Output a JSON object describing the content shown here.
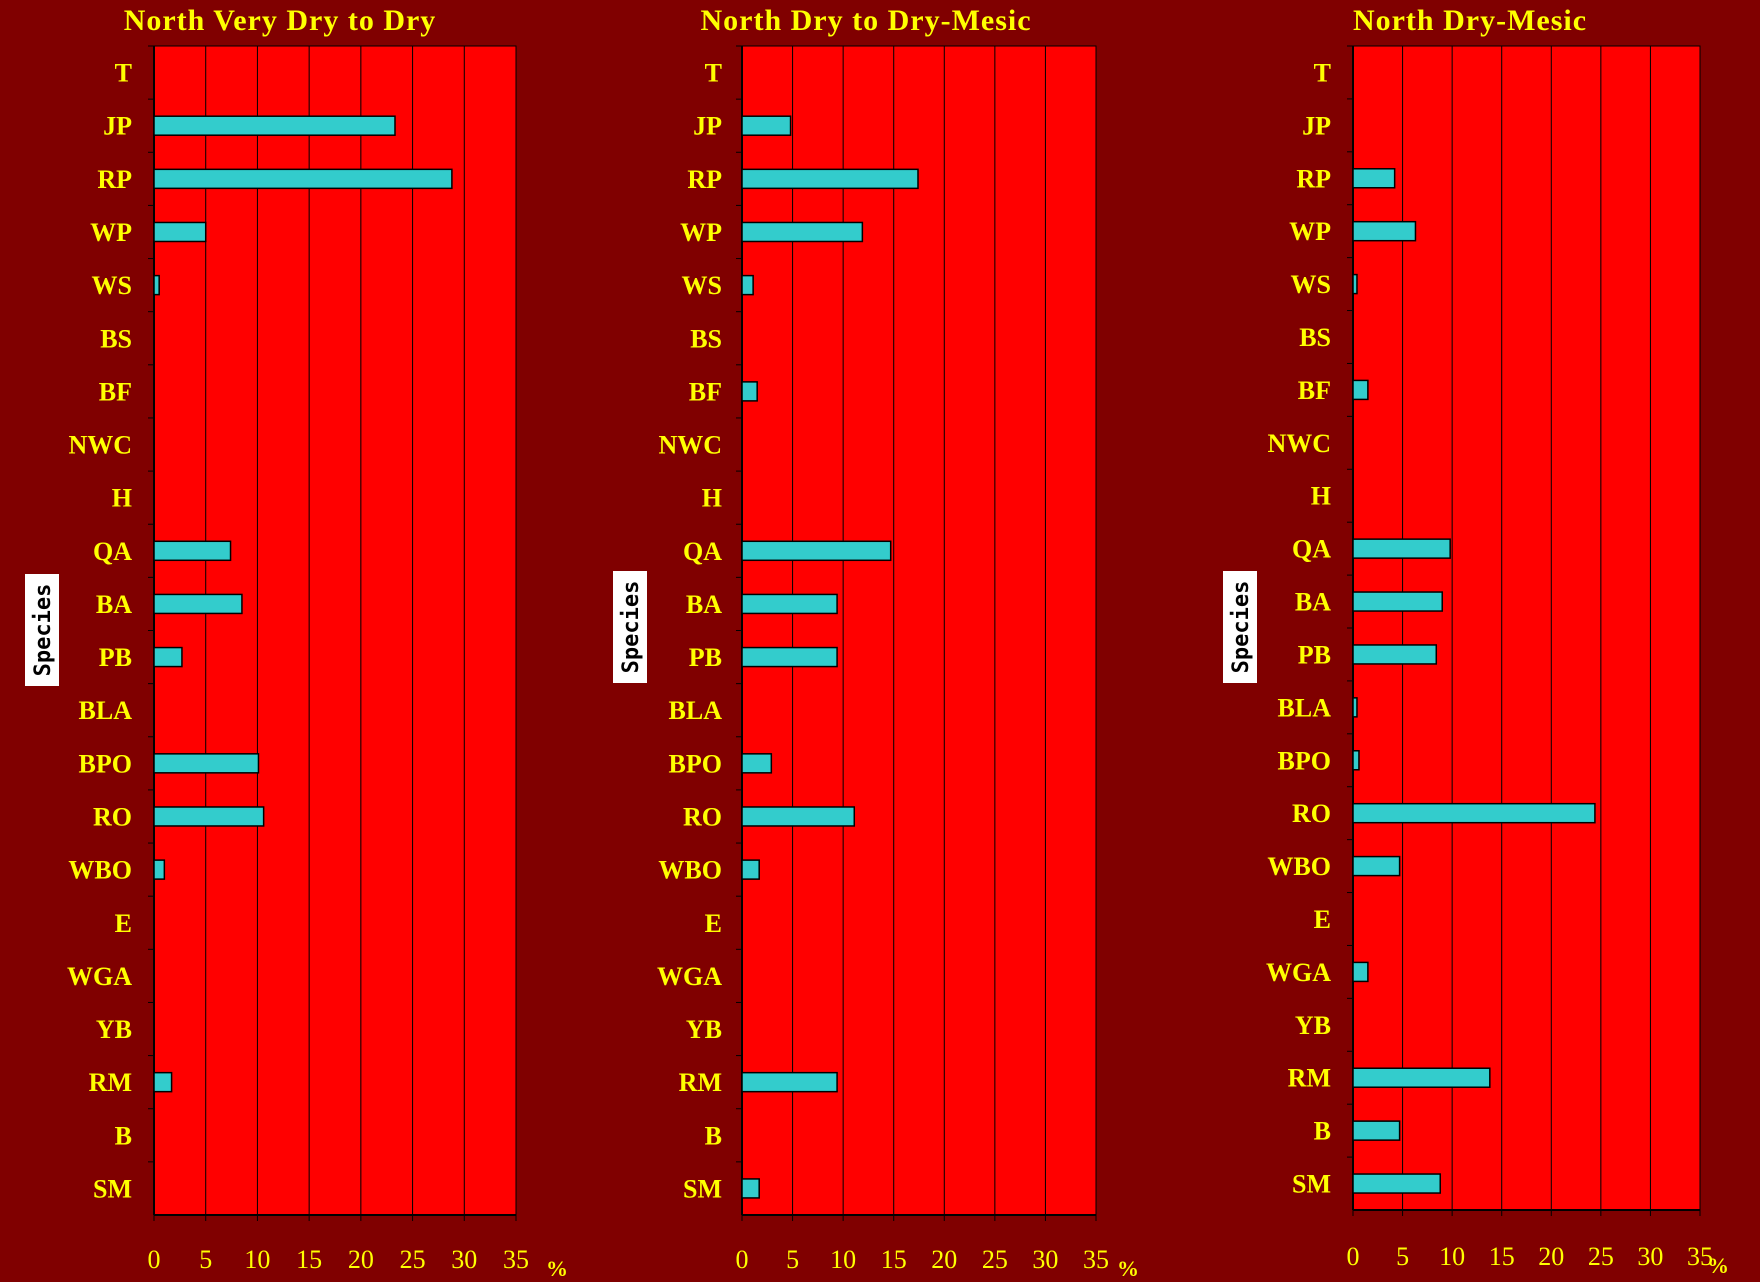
{
  "colors": {
    "background": "#800000",
    "plot_area": "#ff0000",
    "bar_fill": "#33cccc",
    "text": "#ffff00",
    "grid": "#000000"
  },
  "chart_data": [
    {
      "type": "bar",
      "orientation": "horizontal",
      "title": "North Very Dry to Dry",
      "ylabel": "Species",
      "unit": "%",
      "xlim": [
        0,
        35
      ],
      "xticks": [
        "0",
        "5",
        "10",
        "15",
        "20",
        "25",
        "30",
        "35"
      ],
      "grid": true,
      "categories": [
        "T",
        "JP",
        "RP",
        "WP",
        "WS",
        "BS",
        "BF",
        "NWC",
        "H",
        "QA",
        "BA",
        "PB",
        "BLA",
        "BPO",
        "RO",
        "WBO",
        "E",
        "WGA",
        "YB",
        "RM",
        "B",
        "SM"
      ],
      "values": [
        0,
        23.3,
        28.8,
        5.0,
        0.5,
        0,
        0,
        0,
        0,
        7.4,
        8.5,
        2.7,
        0,
        10.1,
        10.6,
        1.0,
        0,
        0,
        0,
        1.7,
        0,
        0
      ]
    },
    {
      "type": "bar",
      "orientation": "horizontal",
      "title": "North Dry to Dry-Mesic",
      "ylabel": "Species",
      "unit": "%",
      "xlim": [
        0,
        35
      ],
      "xticks": [
        "0",
        "5",
        "10",
        "15",
        "20",
        "25",
        "30",
        "35"
      ],
      "grid": true,
      "categories": [
        "T",
        "JP",
        "RP",
        "WP",
        "WS",
        "BS",
        "BF",
        "NWC",
        "H",
        "QA",
        "BA",
        "PB",
        "BLA",
        "BPO",
        "RO",
        "WBO",
        "E",
        "WGA",
        "YB",
        "RM",
        "B",
        "SM"
      ],
      "values": [
        0,
        4.8,
        17.4,
        11.9,
        1.1,
        0,
        1.5,
        0,
        0,
        14.7,
        9.4,
        9.4,
        0,
        2.9,
        11.1,
        1.7,
        0,
        0,
        0,
        9.4,
        0,
        1.7
      ]
    },
    {
      "type": "bar",
      "orientation": "horizontal",
      "title": "North Dry-Mesic",
      "ylabel": "Species",
      "unit": "%",
      "xlim": [
        0,
        35
      ],
      "xticks": [
        "0",
        "5",
        "10",
        "15",
        "20",
        "25",
        "30",
        "35"
      ],
      "grid": true,
      "categories": [
        "T",
        "JP",
        "RP",
        "WP",
        "WS",
        "BS",
        "BF",
        "NWC",
        "H",
        "QA",
        "BA",
        "PB",
        "BLA",
        "BPO",
        "RO",
        "WBO",
        "E",
        "WGA",
        "YB",
        "RM",
        "B",
        "SM"
      ],
      "values": [
        0,
        0,
        4.2,
        6.3,
        0.4,
        0,
        1.5,
        0,
        0,
        9.8,
        9.0,
        8.4,
        0.4,
        0.6,
        24.4,
        4.7,
        0,
        1.5,
        0,
        13.8,
        4.7,
        8.8
      ]
    }
  ]
}
